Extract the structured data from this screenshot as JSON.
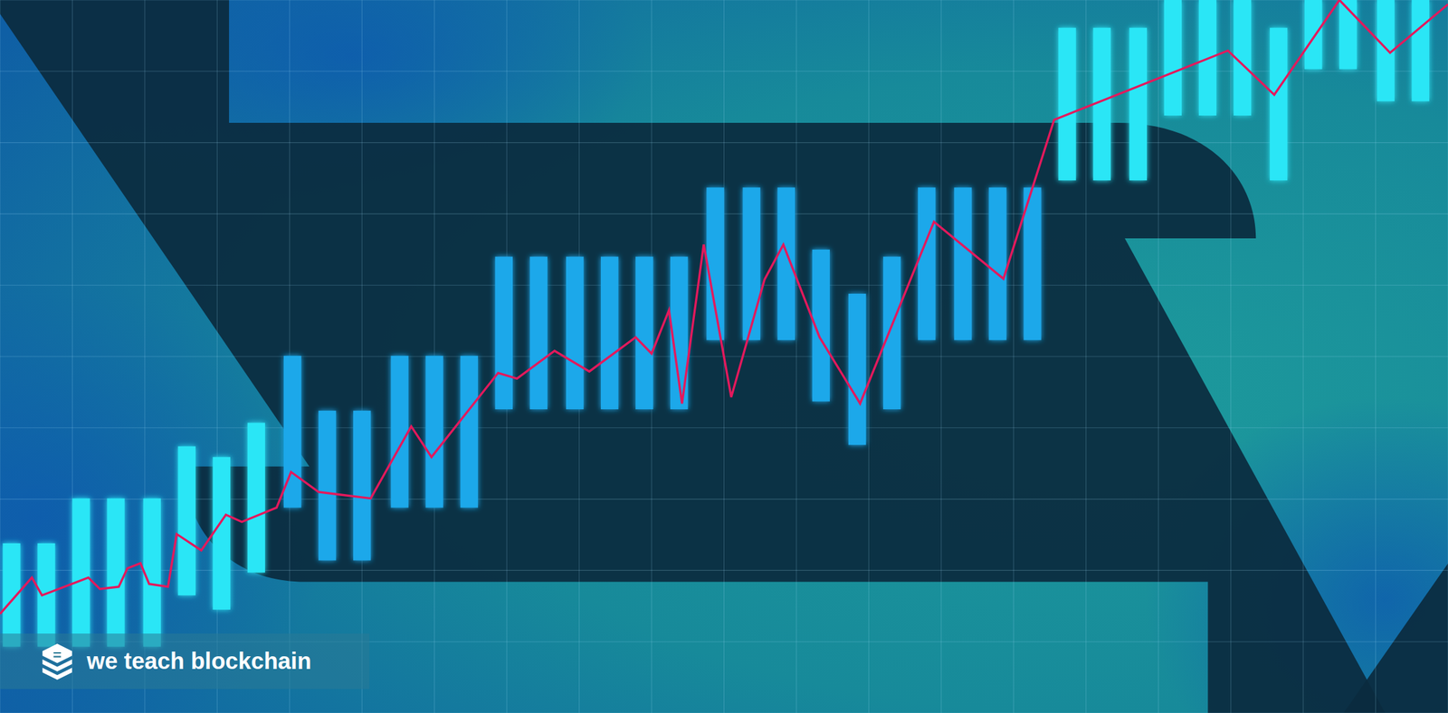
{
  "chart_data": {
    "type": "bar",
    "annotation": "we teach blockchain",
    "xlim": [
      0,
      100
    ],
    "ylim": [
      0,
      100
    ],
    "xticks": [
      0,
      5,
      10,
      15,
      20,
      25,
      30,
      35,
      40,
      45,
      50,
      55,
      60,
      65,
      70,
      75,
      80,
      85,
      90,
      95,
      100
    ],
    "yticks": [
      0,
      10,
      20,
      30,
      40,
      50,
      60,
      70,
      80,
      90,
      100
    ],
    "grid": true,
    "tick_labels": false,
    "series": [
      {
        "type": "bar",
        "x": [
          0.8,
          3.2,
          5.6,
          8.0,
          10.5,
          12.9,
          15.3,
          17.7,
          20.2,
          22.6,
          25.0,
          27.6,
          30.0,
          32.4,
          34.8,
          37.2,
          39.7,
          42.1,
          44.5,
          46.9,
          49.4,
          51.9,
          54.3,
          56.7,
          59.2,
          61.6,
          64.0,
          66.5,
          68.9,
          71.3,
          73.7,
          76.1,
          78.6,
          81.0,
          83.4,
          85.8,
          88.3,
          90.7,
          93.1,
          95.7,
          98.1
        ],
        "low": [
          9.3,
          9.3,
          9.3,
          9.3,
          9.3,
          16.5,
          14.5,
          19.7,
          28.8,
          21.4,
          21.4,
          28.8,
          28.8,
          28.8,
          42.6,
          42.6,
          42.6,
          42.6,
          42.6,
          42.6,
          52.3,
          52.3,
          52.3,
          43.7,
          37.6,
          42.6,
          52.3,
          52.3,
          52.3,
          52.3,
          74.7,
          74.7,
          74.7,
          83.8,
          83.8,
          83.8,
          74.7,
          90.3,
          90.3,
          85.8,
          85.8
        ],
        "values": [
          23.8,
          23.8,
          30.1,
          30.1,
          30.1,
          37.4,
          35.9,
          40.7,
          50.1,
          42.4,
          42.4,
          50.1,
          50.1,
          50.1,
          64.0,
          64.0,
          64.0,
          64.0,
          64.0,
          64.0,
          73.7,
          73.7,
          73.7,
          65.0,
          58.8,
          64.0,
          73.7,
          73.7,
          73.7,
          73.7,
          96.1,
          96.1,
          96.1,
          100,
          100,
          100,
          96.1,
          100,
          100,
          100,
          100
        ],
        "colors": [
          "#2ce6f6",
          "#2ce6f6",
          "#2ce6f6",
          "#2ce6f6",
          "#2ce6f6",
          "#2ce6f6",
          "#2ce6f6",
          "#2ce6f6",
          "#1fa8ea",
          "#1fa8ea",
          "#1fa8ea",
          "#1fa8ea",
          "#1fa8ea",
          "#1fa8ea",
          "#1fa8ea",
          "#1fa8ea",
          "#1fa8ea",
          "#1fa8ea",
          "#1fa8ea",
          "#1fa8ea",
          "#1fa8ea",
          "#1fa8ea",
          "#1fa8ea",
          "#1fa8ea",
          "#1fa8ea",
          "#1fa8ea",
          "#1fa8ea",
          "#1fa8ea",
          "#1fa8ea",
          "#1fa8ea",
          "#2ce6f6",
          "#2ce6f6",
          "#2ce6f6",
          "#2ce6f6",
          "#2ce6f6",
          "#2ce6f6",
          "#2ce6f6",
          "#2ce6f6",
          "#2ce6f6",
          "#2ce6f6",
          "#2ce6f6"
        ]
      },
      {
        "type": "line",
        "color": "#e3195c",
        "x": [
          0,
          2.2,
          2.9,
          6.1,
          6.9,
          8.2,
          8.8,
          9.7,
          10.3,
          11.6,
          12.2,
          13.9,
          15.6,
          16.7,
          19.1,
          20.1,
          22.0,
          25.6,
          28.4,
          29.8,
          34.4,
          35.7,
          38.3,
          40.7,
          43.9,
          45.0,
          46.2,
          47.1,
          48.6,
          50.5,
          52.8,
          54.1,
          56.6,
          59.4,
          64.5,
          69.3,
          72.8,
          84.8,
          88.0,
          92.5,
          96.0,
          100
        ],
        "values": [
          13.9,
          19.0,
          16.5,
          19.0,
          17.4,
          17.7,
          20.3,
          21.0,
          18.1,
          17.7,
          25.1,
          22.8,
          27.8,
          26.8,
          28.8,
          33.8,
          31.0,
          30.1,
          40.2,
          35.9,
          47.7,
          46.9,
          50.8,
          47.9,
          52.7,
          50.4,
          56.5,
          43.4,
          65.7,
          44.3,
          60.8,
          65.7,
          52.7,
          43.4,
          68.9,
          60.9,
          83.2,
          92.9,
          86.7,
          100,
          92.6,
          99.4
        ]
      }
    ]
  }
}
